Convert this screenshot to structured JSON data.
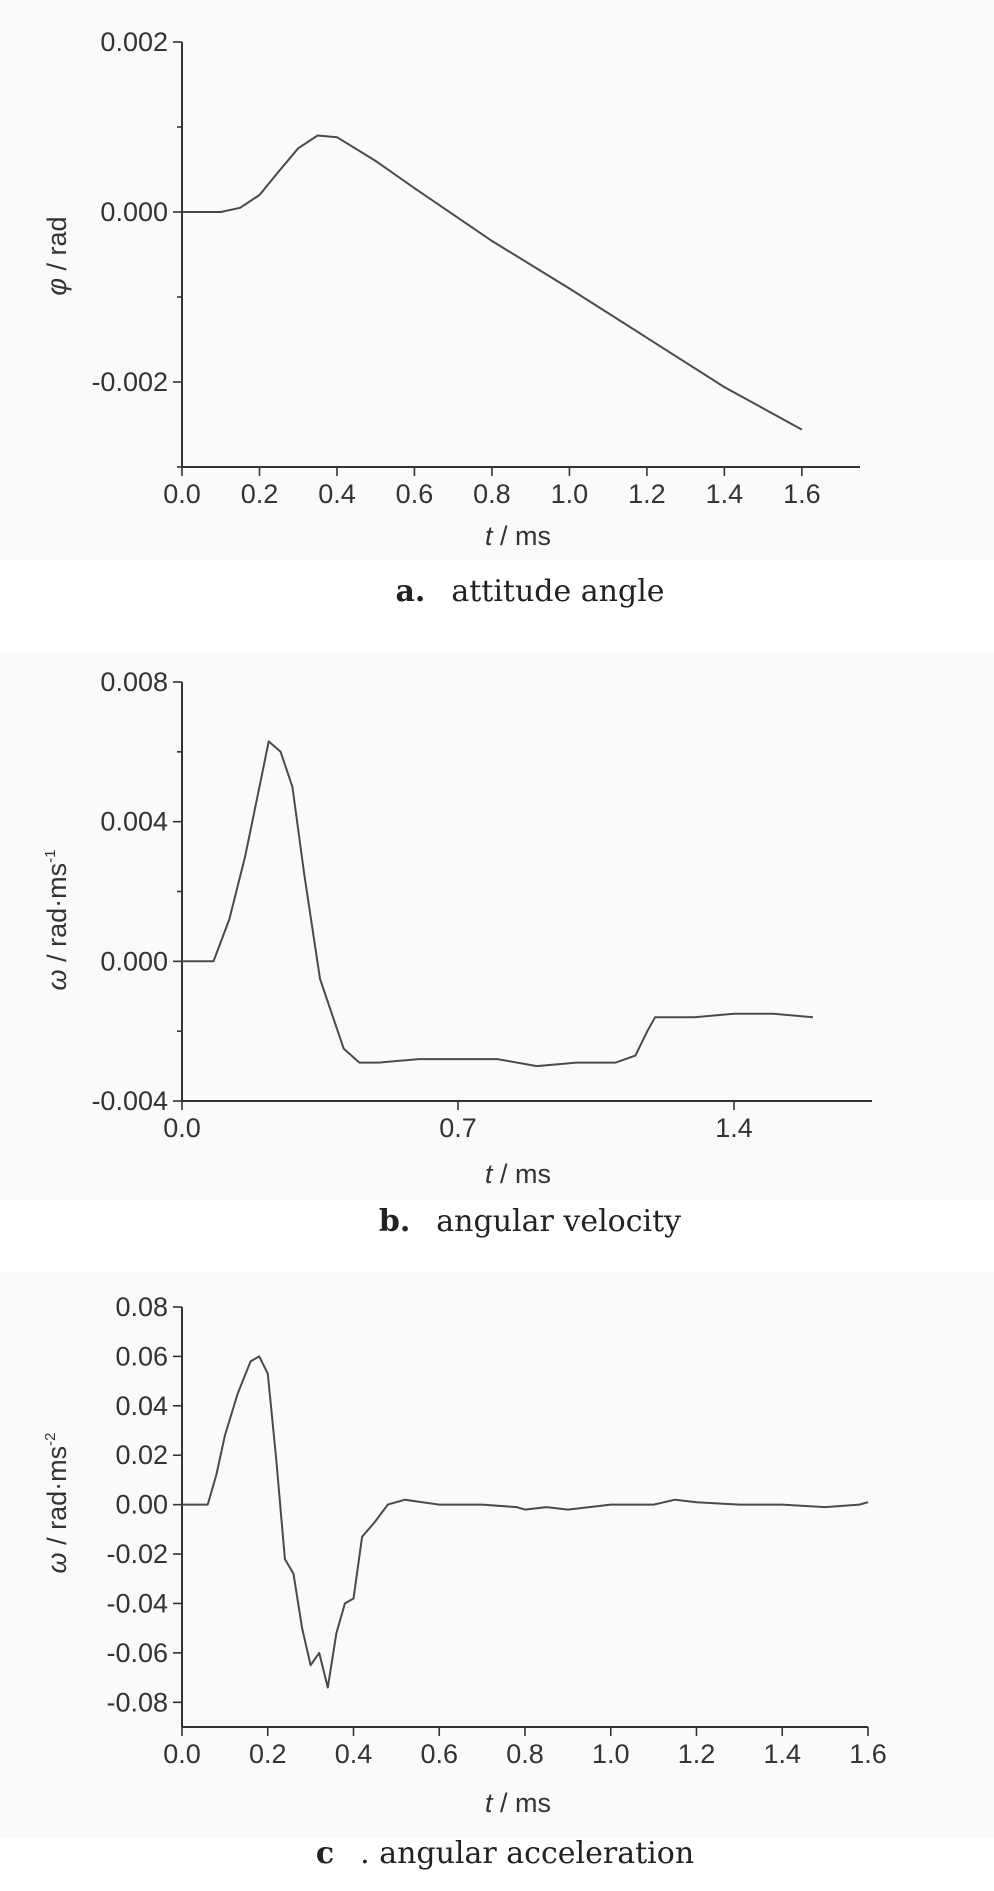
{
  "chart_data": [
    {
      "type": "line",
      "caption_letter": "a.",
      "caption_text": "attitude angle",
      "xlabel_var": "t",
      "xlabel_unit": " / ms",
      "ylabel_var": "φ",
      "ylabel_unit": " / rad",
      "ylabel_sup": "",
      "xlim": [
        0.0,
        1.75
      ],
      "ylim": [
        -0.003,
        0.002
      ],
      "xticks": [
        0.0,
        0.2,
        0.4,
        0.6,
        0.8,
        1.0,
        1.2,
        1.4,
        1.6
      ],
      "xtick_labels": [
        "0.0",
        "0.2",
        "0.4",
        "0.6",
        "0.8",
        "1.0",
        "1.2",
        "1.4",
        "1.6"
      ],
      "yticks": [
        -0.002,
        0.0,
        0.002
      ],
      "ytick_labels": [
        "-0.002",
        "0.000",
        "0.002"
      ],
      "yminor": [
        -0.003,
        -0.001,
        0.001
      ],
      "x": [
        0.0,
        0.1,
        0.15,
        0.2,
        0.25,
        0.3,
        0.35,
        0.4,
        0.5,
        0.6,
        0.8,
        1.0,
        1.2,
        1.4,
        1.6
      ],
      "y": [
        0.0,
        0.0,
        5e-05,
        0.0002,
        0.00048,
        0.00075,
        0.0009,
        0.00088,
        0.0006,
        0.00028,
        -0.00034,
        -0.0009,
        -0.00148,
        -0.00206,
        -0.00256
      ]
    },
    {
      "type": "line",
      "caption_letter": "b.",
      "caption_text": "angular velocity",
      "xlabel_var": "t",
      "xlabel_unit": " / ms",
      "ylabel_var": "ω",
      "ylabel_unit": " / rad·ms",
      "ylabel_sup": "-1",
      "xlim": [
        0.0,
        1.75
      ],
      "ylim": [
        -0.004,
        0.008
      ],
      "xticks": [
        0.0,
        0.7,
        1.4
      ],
      "xtick_labels": [
        "0.0",
        "0.7",
        "1.4"
      ],
      "yticks": [
        -0.004,
        0.0,
        0.004,
        0.008
      ],
      "ytick_labels": [
        "-0.004",
        "0.000",
        "0.004",
        "0.008"
      ],
      "yminor": [
        -0.002,
        0.002,
        0.006
      ],
      "x": [
        0.0,
        0.08,
        0.12,
        0.16,
        0.2,
        0.22,
        0.25,
        0.28,
        0.31,
        0.35,
        0.38,
        0.41,
        0.45,
        0.5,
        0.6,
        0.7,
        0.8,
        0.9,
        1.0,
        1.1,
        1.15,
        1.18,
        1.2,
        1.3,
        1.4,
        1.5,
        1.6
      ],
      "y": [
        0.0,
        0.0,
        0.0012,
        0.003,
        0.0052,
        0.0063,
        0.006,
        0.005,
        0.0025,
        -0.0005,
        -0.0015,
        -0.0025,
        -0.0029,
        -0.0029,
        -0.0028,
        -0.0028,
        -0.0028,
        -0.003,
        -0.0029,
        -0.0029,
        -0.0027,
        -0.002,
        -0.0016,
        -0.0016,
        -0.0015,
        -0.0015,
        -0.0016
      ]
    },
    {
      "type": "line",
      "caption_letter": "c",
      "caption_text": ". angular acceleration",
      "xlabel_var": "t",
      "xlabel_unit": " / ms",
      "ylabel_var": "ω",
      "ylabel_unit": " / rad·ms",
      "ylabel_sup": "-2",
      "xlim": [
        0.0,
        1.6
      ],
      "ylim": [
        -0.09,
        0.08
      ],
      "xticks": [
        0.0,
        0.2,
        0.4,
        0.6,
        0.8,
        1.0,
        1.2,
        1.4,
        1.6
      ],
      "xtick_labels": [
        "0.0",
        "0.2",
        "0.4",
        "0.6",
        "0.8",
        "1.0",
        "1.2",
        "1.4",
        "1.6"
      ],
      "yticks": [
        -0.08,
        -0.06,
        -0.04,
        -0.02,
        0.0,
        0.02,
        0.04,
        0.06,
        0.08
      ],
      "ytick_labels": [
        "-0.08",
        "-0.06",
        "-0.04",
        "-0.02",
        "0.00",
        "0.02",
        "0.04",
        "0.06",
        "0.08"
      ],
      "yminor": [],
      "x": [
        0.0,
        0.06,
        0.08,
        0.1,
        0.13,
        0.16,
        0.18,
        0.2,
        0.22,
        0.24,
        0.26,
        0.28,
        0.3,
        0.32,
        0.34,
        0.36,
        0.38,
        0.4,
        0.42,
        0.45,
        0.48,
        0.52,
        0.6,
        0.7,
        0.78,
        0.8,
        0.85,
        0.9,
        1.0,
        1.1,
        1.15,
        1.2,
        1.3,
        1.4,
        1.5,
        1.58,
        1.6
      ],
      "y": [
        0.0,
        0.0,
        0.012,
        0.028,
        0.045,
        0.058,
        0.06,
        0.053,
        0.018,
        -0.022,
        -0.028,
        -0.05,
        -0.065,
        -0.06,
        -0.074,
        -0.052,
        -0.04,
        -0.038,
        -0.013,
        -0.007,
        0.0,
        0.002,
        0.0,
        0.0,
        -0.001,
        -0.002,
        -0.001,
        -0.002,
        0.0,
        0.0,
        0.002,
        0.001,
        0.0,
        0.0,
        -0.001,
        0.0,
        0.001
      ]
    }
  ]
}
